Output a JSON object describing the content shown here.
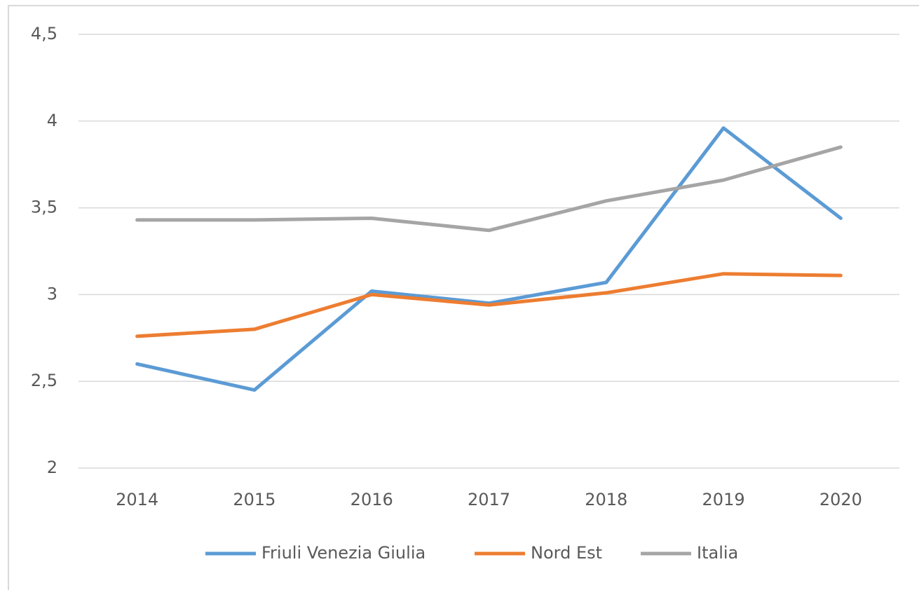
{
  "chart_data": {
    "type": "line",
    "categories": [
      "2014",
      "2015",
      "2016",
      "2017",
      "2018",
      "2019",
      "2020"
    ],
    "series": [
      {
        "name": "Friuli Venezia Giulia",
        "color": "#5b9bd5",
        "values": [
          2.6,
          2.45,
          3.02,
          2.95,
          3.07,
          3.96,
          3.44
        ]
      },
      {
        "name": "Nord Est",
        "color": "#ed7d31",
        "values": [
          2.76,
          2.8,
          3.0,
          2.94,
          3.01,
          3.12,
          3.11
        ]
      },
      {
        "name": "Italia",
        "color": "#a5a5a5",
        "values": [
          3.43,
          3.43,
          3.44,
          3.37,
          3.54,
          3.66,
          3.85
        ]
      }
    ],
    "ylim": [
      2,
      4.5
    ],
    "yticks": [
      2,
      {
        "value": 2.5,
        "label": "2,5"
      },
      3,
      {
        "value": 3.5,
        "label": "3,5"
      },
      4,
      {
        "value": 4.5,
        "label": "4,5"
      }
    ],
    "grid": true,
    "legend": "bottom"
  }
}
